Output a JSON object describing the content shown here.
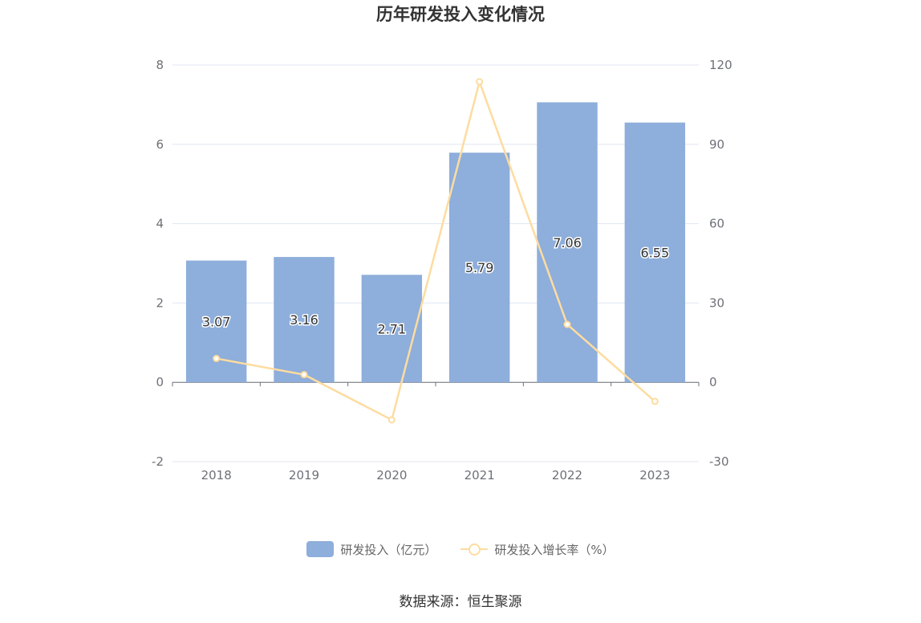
{
  "chart_data": {
    "type": "bar",
    "title": "历年研发投入变化情况",
    "categories": [
      "2018",
      "2019",
      "2020",
      "2021",
      "2022",
      "2023"
    ],
    "series": [
      {
        "name": "研发投入（亿元）",
        "type": "bar",
        "axis": "left",
        "color": "#8eaedb",
        "values": [
          3.07,
          3.16,
          2.71,
          5.79,
          7.06,
          6.55
        ]
      },
      {
        "name": "研发投入增长率（%）",
        "type": "line",
        "axis": "right",
        "color": "#fddca0",
        "values": [
          9.0,
          2.9,
          -14.2,
          113.7,
          21.9,
          -7.2
        ]
      }
    ],
    "y_left": {
      "min": -2,
      "max": 8,
      "ticks": [
        8,
        6,
        4,
        2,
        0,
        -2
      ]
    },
    "y_right": {
      "min": -30,
      "max": 120,
      "ticks": [
        120,
        90,
        60,
        30,
        0,
        -30
      ]
    },
    "grid": true,
    "legend_position": "bottom"
  },
  "source_text": "数据来源：恒生聚源"
}
